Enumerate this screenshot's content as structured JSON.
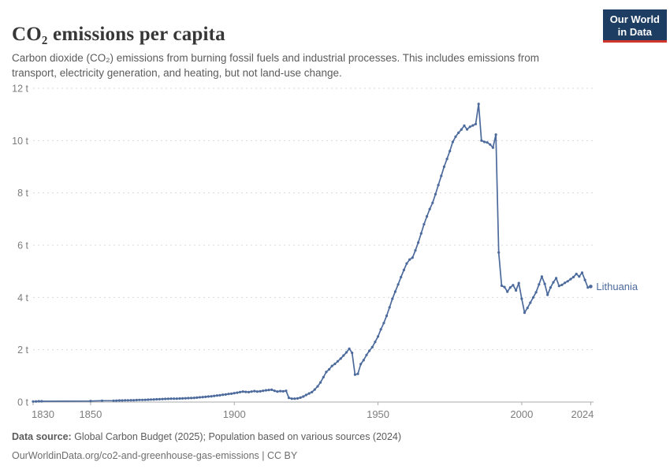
{
  "header": {
    "title": "CO₂ emissions per capita",
    "subtitle": "Carbon dioxide (CO₂) emissions from burning fossil fuels and industrial processes. This includes emissions from transport, electricity generation, and heating, but not land-use change.",
    "logo": {
      "line1": "Our World",
      "line2": "in Data"
    }
  },
  "colors": {
    "line": "#4C6A9C",
    "entity_label": "#4C6A9C",
    "gridline": "#d9d9d9",
    "axis": "#a9a9a9",
    "tick_label": "#7d7d7d",
    "logo_navy": "#1d3d63",
    "logo_red": "#d0342c"
  },
  "footer": {
    "source_label": "Data source:",
    "source_text": " Global Carbon Budget (2025); Population based on various sources (2024)",
    "url_line": "OurWorldinData.org/co2-and-greenhouse-gas-emissions | CC BY"
  },
  "chart_data": {
    "type": "line",
    "title": "CO₂ emissions per capita",
    "xlabel": "",
    "ylabel": "",
    "xlim": [
      1830,
      2024
    ],
    "ylim": [
      0,
      12
    ],
    "grid": "horizontal-dashed",
    "legend_position": "end-of-line-label",
    "x_ticks": [
      1830,
      1850,
      1900,
      1950,
      2000,
      2024
    ],
    "x_tick_labels": [
      "1830",
      "1850",
      "1900",
      "1950",
      "2000",
      "2024"
    ],
    "y_ticks": [
      0,
      2,
      4,
      6,
      8,
      10,
      12
    ],
    "y_tick_labels": [
      "0 t",
      "2 t",
      "4 t",
      "6 t",
      "8 t",
      "10 t",
      "12 t"
    ],
    "series": [
      {
        "name": "Lithuania",
        "color": "#4C6A9C",
        "points": [
          [
            1830,
            0.02
          ],
          [
            1831,
            0.025
          ],
          [
            1832,
            0.03
          ],
          [
            1833,
            0.03
          ],
          [
            1850,
            0.04
          ],
          [
            1854,
            0.05
          ],
          [
            1858,
            0.05
          ],
          [
            1859,
            0.055
          ],
          [
            1860,
            0.06
          ],
          [
            1861,
            0.06
          ],
          [
            1862,
            0.065
          ],
          [
            1863,
            0.065
          ],
          [
            1864,
            0.07
          ],
          [
            1865,
            0.07
          ],
          [
            1866,
            0.075
          ],
          [
            1867,
            0.08
          ],
          [
            1868,
            0.08
          ],
          [
            1869,
            0.085
          ],
          [
            1870,
            0.09
          ],
          [
            1871,
            0.095
          ],
          [
            1872,
            0.1
          ],
          [
            1873,
            0.105
          ],
          [
            1874,
            0.11
          ],
          [
            1875,
            0.115
          ],
          [
            1876,
            0.12
          ],
          [
            1877,
            0.125
          ],
          [
            1878,
            0.13
          ],
          [
            1879,
            0.13
          ],
          [
            1880,
            0.13
          ],
          [
            1881,
            0.135
          ],
          [
            1882,
            0.14
          ],
          [
            1883,
            0.145
          ],
          [
            1884,
            0.15
          ],
          [
            1885,
            0.155
          ],
          [
            1886,
            0.16
          ],
          [
            1887,
            0.17
          ],
          [
            1888,
            0.18
          ],
          [
            1889,
            0.19
          ],
          [
            1890,
            0.2
          ],
          [
            1891,
            0.21
          ],
          [
            1892,
            0.22
          ],
          [
            1893,
            0.235
          ],
          [
            1894,
            0.25
          ],
          [
            1895,
            0.26
          ],
          [
            1896,
            0.28
          ],
          [
            1897,
            0.29
          ],
          [
            1898,
            0.31
          ],
          [
            1899,
            0.32
          ],
          [
            1900,
            0.34
          ],
          [
            1901,
            0.36
          ],
          [
            1902,
            0.38
          ],
          [
            1903,
            0.4
          ],
          [
            1904,
            0.39
          ],
          [
            1905,
            0.38
          ],
          [
            1906,
            0.4
          ],
          [
            1907,
            0.42
          ],
          [
            1908,
            0.4
          ],
          [
            1909,
            0.41
          ],
          [
            1910,
            0.43
          ],
          [
            1911,
            0.45
          ],
          [
            1912,
            0.46
          ],
          [
            1913,
            0.47
          ],
          [
            1914,
            0.43
          ],
          [
            1915,
            0.4
          ],
          [
            1916,
            0.42
          ],
          [
            1917,
            0.41
          ],
          [
            1918,
            0.43
          ],
          [
            1919,
            0.16
          ],
          [
            1920,
            0.13
          ],
          [
            1921,
            0.13
          ],
          [
            1922,
            0.14
          ],
          [
            1923,
            0.17
          ],
          [
            1924,
            0.21
          ],
          [
            1925,
            0.27
          ],
          [
            1926,
            0.33
          ],
          [
            1927,
            0.38
          ],
          [
            1928,
            0.48
          ],
          [
            1929,
            0.6
          ],
          [
            1930,
            0.75
          ],
          [
            1931,
            0.95
          ],
          [
            1932,
            1.15
          ],
          [
            1933,
            1.25
          ],
          [
            1934,
            1.38
          ],
          [
            1935,
            1.46
          ],
          [
            1936,
            1.56
          ],
          [
            1937,
            1.66
          ],
          [
            1938,
            1.78
          ],
          [
            1939,
            1.9
          ],
          [
            1940,
            2.04
          ],
          [
            1941,
            1.88
          ],
          [
            1942,
            1.05
          ],
          [
            1943,
            1.08
          ],
          [
            1944,
            1.45
          ],
          [
            1945,
            1.6
          ],
          [
            1946,
            1.8
          ],
          [
            1947,
            1.96
          ],
          [
            1948,
            2.1
          ],
          [
            1949,
            2.3
          ],
          [
            1950,
            2.51
          ],
          [
            1951,
            2.78
          ],
          [
            1952,
            3.02
          ],
          [
            1953,
            3.3
          ],
          [
            1954,
            3.62
          ],
          [
            1955,
            3.95
          ],
          [
            1956,
            4.22
          ],
          [
            1957,
            4.5
          ],
          [
            1958,
            4.78
          ],
          [
            1959,
            5.05
          ],
          [
            1960,
            5.3
          ],
          [
            1961,
            5.45
          ],
          [
            1962,
            5.52
          ],
          [
            1963,
            5.8
          ],
          [
            1964,
            6.1
          ],
          [
            1965,
            6.45
          ],
          [
            1966,
            6.8
          ],
          [
            1967,
            7.1
          ],
          [
            1968,
            7.38
          ],
          [
            1969,
            7.62
          ],
          [
            1970,
            7.95
          ],
          [
            1971,
            8.3
          ],
          [
            1972,
            8.65
          ],
          [
            1973,
            9.0
          ],
          [
            1974,
            9.3
          ],
          [
            1975,
            9.6
          ],
          [
            1976,
            9.95
          ],
          [
            1977,
            10.15
          ],
          [
            1978,
            10.3
          ],
          [
            1979,
            10.42
          ],
          [
            1980,
            10.57
          ],
          [
            1981,
            10.43
          ],
          [
            1982,
            10.53
          ],
          [
            1983,
            10.58
          ],
          [
            1984,
            10.63
          ],
          [
            1985,
            11.4
          ],
          [
            1986,
            10.0
          ],
          [
            1987,
            9.95
          ],
          [
            1988,
            9.93
          ],
          [
            1989,
            9.85
          ],
          [
            1990,
            9.73
          ],
          [
            1991,
            10.23
          ],
          [
            1992,
            5.72
          ],
          [
            1993,
            4.45
          ],
          [
            1994,
            4.4
          ],
          [
            1995,
            4.22
          ],
          [
            1996,
            4.38
          ],
          [
            1997,
            4.47
          ],
          [
            1998,
            4.27
          ],
          [
            1999,
            4.55
          ],
          [
            2000,
            3.95
          ],
          [
            2001,
            3.42
          ],
          [
            2002,
            3.6
          ],
          [
            2003,
            3.8
          ],
          [
            2004,
            4.0
          ],
          [
            2005,
            4.2
          ],
          [
            2006,
            4.5
          ],
          [
            2007,
            4.8
          ],
          [
            2008,
            4.52
          ],
          [
            2009,
            4.1
          ],
          [
            2010,
            4.38
          ],
          [
            2011,
            4.58
          ],
          [
            2012,
            4.74
          ],
          [
            2013,
            4.44
          ],
          [
            2014,
            4.48
          ],
          [
            2015,
            4.56
          ],
          [
            2016,
            4.62
          ],
          [
            2017,
            4.7
          ],
          [
            2018,
            4.78
          ],
          [
            2019,
            4.9
          ],
          [
            2020,
            4.8
          ],
          [
            2021,
            4.95
          ],
          [
            2022,
            4.67
          ],
          [
            2023,
            4.38
          ],
          [
            2024,
            4.42
          ]
        ]
      }
    ]
  }
}
